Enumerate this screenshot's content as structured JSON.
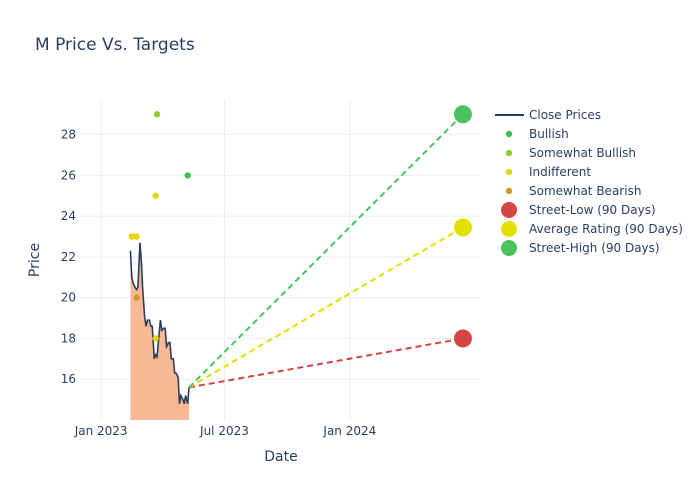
{
  "chart_data": {
    "type": "line",
    "title": "M Price Vs. Targets",
    "xlabel": "Date",
    "ylabel": "Price",
    "x_ticks": [
      "Jan 2023",
      "Jul 2023",
      "Jan 2024"
    ],
    "x_tick_dates": [
      "2023-01-01",
      "2023-07-01",
      "2024-01-01"
    ],
    "y_ticks": [
      16,
      18,
      20,
      22,
      24,
      26,
      28
    ],
    "xlim": [
      "2022-12-01",
      "2024-07-10"
    ],
    "ylim": [
      14.0,
      29.7
    ],
    "legend_position": "right",
    "grid": true,
    "colors": {
      "close_line": "#2a3f5f",
      "close_fill": "#f9b896",
      "bullish": "#3dbf55",
      "somewhat_bullish": "#8fcc2e",
      "indifferent": "#e0d800",
      "somewhat_bearish": "#d19a22",
      "street_low": "#d64545",
      "average": "#e3e000",
      "street_high": "#4cc25e"
    },
    "close_prices": [
      {
        "date": "2023-02-13",
        "value": 22.3
      },
      {
        "date": "2023-02-15",
        "value": 21.0
      },
      {
        "date": "2023-02-17",
        "value": 20.7
      },
      {
        "date": "2023-02-20",
        "value": 20.5
      },
      {
        "date": "2023-02-22",
        "value": 20.4
      },
      {
        "date": "2023-02-24",
        "value": 20.5
      },
      {
        "date": "2023-02-27",
        "value": 22.7
      },
      {
        "date": "2023-03-01",
        "value": 21.8
      },
      {
        "date": "2023-03-03",
        "value": 20.4
      },
      {
        "date": "2023-03-06",
        "value": 19.0
      },
      {
        "date": "2023-03-08",
        "value": 18.6
      },
      {
        "date": "2023-03-10",
        "value": 18.9
      },
      {
        "date": "2023-03-13",
        "value": 18.9
      },
      {
        "date": "2023-03-15",
        "value": 18.6
      },
      {
        "date": "2023-03-17",
        "value": 18.6
      },
      {
        "date": "2023-03-20",
        "value": 17.0
      },
      {
        "date": "2023-03-22",
        "value": 17.2
      },
      {
        "date": "2023-03-24",
        "value": 17.1
      },
      {
        "date": "2023-03-27",
        "value": 18.2
      },
      {
        "date": "2023-03-29",
        "value": 18.9
      },
      {
        "date": "2023-03-31",
        "value": 18.4
      },
      {
        "date": "2023-04-03",
        "value": 18.5
      },
      {
        "date": "2023-04-05",
        "value": 18.5
      },
      {
        "date": "2023-04-07",
        "value": 17.6
      },
      {
        "date": "2023-04-10",
        "value": 17.8
      },
      {
        "date": "2023-04-12",
        "value": 17.8
      },
      {
        "date": "2023-04-14",
        "value": 17.0
      },
      {
        "date": "2023-04-17",
        "value": 17.0
      },
      {
        "date": "2023-04-19",
        "value": 16.3
      },
      {
        "date": "2023-04-21",
        "value": 16.3
      },
      {
        "date": "2023-04-24",
        "value": 16.1
      },
      {
        "date": "2023-04-26",
        "value": 14.8
      },
      {
        "date": "2023-04-28",
        "value": 15.2
      },
      {
        "date": "2023-05-01",
        "value": 15.0
      },
      {
        "date": "2023-05-03",
        "value": 14.8
      },
      {
        "date": "2023-05-05",
        "value": 15.2
      },
      {
        "date": "2023-05-08",
        "value": 14.8
      },
      {
        "date": "2023-05-10",
        "value": 15.6
      }
    ],
    "ratings": [
      {
        "series": "Indifferent",
        "date": "2023-02-15",
        "value": 23.0
      },
      {
        "series": "Indifferent",
        "date": "2023-02-22",
        "value": 23.0
      },
      {
        "series": "Somewhat Bearish",
        "date": "2023-02-22",
        "value": 20.0
      },
      {
        "series": "Somewhat Bullish",
        "date": "2023-03-24",
        "value": 29.0
      },
      {
        "series": "Indifferent",
        "date": "2023-03-22",
        "value": 25.0
      },
      {
        "series": "Indifferent",
        "date": "2023-03-22",
        "value": 18.0
      },
      {
        "series": "Bullish",
        "date": "2023-05-08",
        "value": 26.0
      }
    ],
    "targets": {
      "start_date": "2023-05-10",
      "start_value": 15.6,
      "end_date": "2024-06-15",
      "street_low": 18.0,
      "average": 23.45,
      "street_high": 29.0
    },
    "legend": [
      {
        "label": "Close Prices",
        "kind": "line",
        "color": "#2a3f5f"
      },
      {
        "label": "Bullish",
        "kind": "dot",
        "color": "#3dbf55"
      },
      {
        "label": "Somewhat Bullish",
        "kind": "dot",
        "color": "#8fcc2e"
      },
      {
        "label": "Indifferent",
        "kind": "dot",
        "color": "#e0d800"
      },
      {
        "label": "Somewhat Bearish",
        "kind": "dot",
        "color": "#d19a22"
      },
      {
        "label": "Street-Low (90 Days)",
        "kind": "big",
        "color": "#d64545"
      },
      {
        "label": "Average Rating (90 Days)",
        "kind": "big",
        "color": "#e3e000"
      },
      {
        "label": "Street-High (90 Days)",
        "kind": "big",
        "color": "#4cc25e"
      }
    ]
  }
}
